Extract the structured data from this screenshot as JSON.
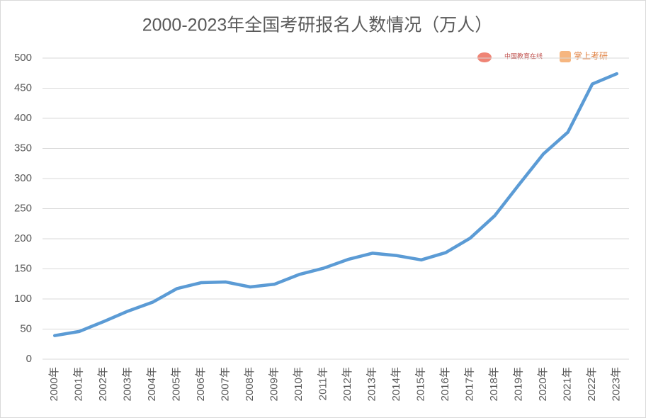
{
  "chart_data": {
    "type": "line",
    "title": "2000-2023年全国考研报名人数情况（万人）",
    "categories": [
      "2000年",
      "2001年",
      "2002年",
      "2003年",
      "2004年",
      "2005年",
      "2006年",
      "2007年",
      "2008年",
      "2009年",
      "2010年",
      "2011年",
      "2012年",
      "2013年",
      "2014年",
      "2015年",
      "2016年",
      "2017年",
      "2018年",
      "2019年",
      "2020年",
      "2021年",
      "2022年",
      "2023年"
    ],
    "series": [
      {
        "name": "报名人数",
        "color": "#5b9bd5",
        "values": [
          39.2,
          46,
          62.4,
          79.9,
          94.5,
          117.2,
          127.1,
          128.2,
          120,
          124.6,
          140.6,
          151.1,
          165.6,
          176,
          172,
          164.9,
          177,
          201,
          238,
          290,
          341,
          377,
          457,
          474
        ]
      }
    ],
    "ylim": [
      0,
      500
    ],
    "yticks": [
      0,
      50,
      100,
      150,
      200,
      250,
      300,
      350,
      400,
      450,
      500
    ],
    "grid": true,
    "watermarks": [
      "中国教育在线",
      "掌上考研"
    ]
  }
}
